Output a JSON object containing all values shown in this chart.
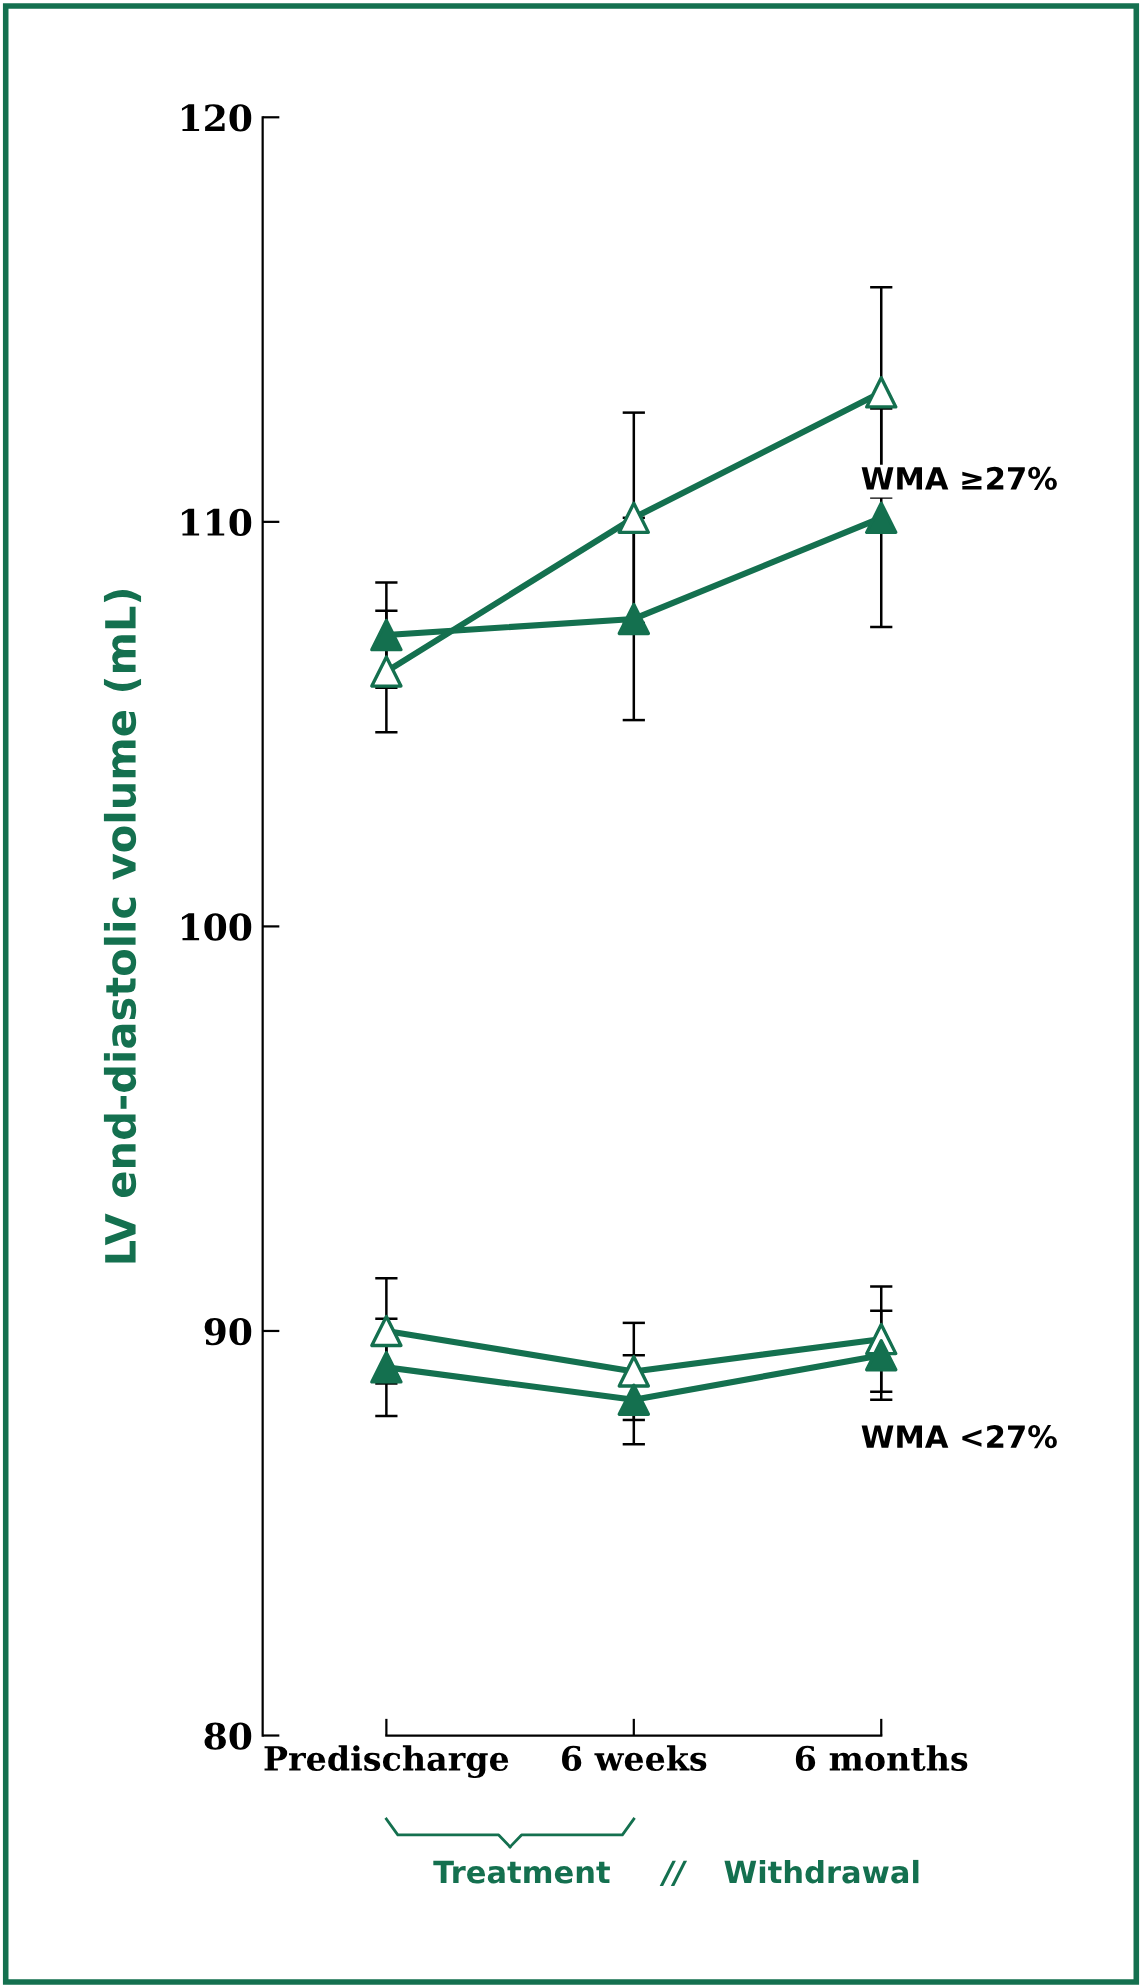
{
  "chart_data": {
    "type": "line",
    "ylabel": "LV end-diastolic volume (mL)",
    "categories": [
      "Predischarge",
      "6 weeks",
      "6 months"
    ],
    "series": [
      {
        "color": "#14704f",
        "colors": [
          "#ffffff",
          "#ffffff",
          "#ffffff"
        ],
        "values": [
          106.3,
          110.1,
          113.2
        ],
        "errors": [
          1.5,
          2.6,
          2.6
        ]
      },
      {
        "color": "#14704f",
        "colors": [
          "#14704f",
          "#14704f",
          "#14704f"
        ],
        "values": [
          107.2,
          107.6,
          110.1
        ],
        "errors": [
          1.3,
          2.5,
          2.7
        ]
      },
      {
        "color": "#14704f",
        "colors": [
          "#ffffff",
          "#ffffff",
          "#ffffff"
        ],
        "values": [
          90.0,
          89.0,
          89.8
        ],
        "errors": [
          1.3,
          1.2,
          1.3
        ]
      },
      {
        "color": "#14704f",
        "colors": [
          "#14704f",
          "#14704f",
          "#14704f"
        ],
        "values": [
          89.1,
          88.3,
          89.4
        ],
        "errors": [
          1.2,
          1.1,
          1.1
        ]
      }
    ],
    "ylim": [
      80,
      120
    ],
    "yticks": [
      80,
      90,
      100,
      110,
      120
    ],
    "grid": false,
    "legend": false,
    "marker": "triangle",
    "line_style": "solid",
    "annotations": [
      "WMA ≥27%",
      "WMA <27%",
      "Treatment",
      "//",
      "Withdrawal"
    ]
  }
}
